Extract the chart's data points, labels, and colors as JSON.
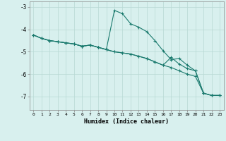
{
  "xlabel": "Humidex (Indice chaleur)",
  "background_color": "#d8f0ee",
  "grid_color": "#b8d8d4",
  "line_color": "#1a7a6e",
  "xlim": [
    -0.5,
    23.5
  ],
  "ylim": [
    -7.6,
    -2.75
  ],
  "xticks": [
    0,
    1,
    2,
    3,
    4,
    5,
    6,
    7,
    8,
    9,
    10,
    11,
    12,
    13,
    14,
    15,
    16,
    17,
    18,
    19,
    20,
    21,
    22,
    23
  ],
  "yticks": [
    -7,
    -6,
    -5,
    -4,
    -3
  ],
  "line1_x": [
    0,
    1,
    2,
    3,
    4,
    5,
    6,
    7,
    8,
    9,
    10,
    11,
    12,
    13,
    14,
    15,
    16,
    17,
    18,
    19,
    20,
    21,
    22,
    23
  ],
  "line1_y": [
    -4.25,
    -4.4,
    -4.5,
    -4.55,
    -4.6,
    -4.65,
    -4.75,
    -4.7,
    -4.8,
    -4.9,
    -3.15,
    -3.3,
    -3.75,
    -3.9,
    -4.1,
    -4.5,
    -4.95,
    -5.35,
    -5.3,
    -5.6,
    -5.85,
    -6.85,
    -6.95,
    -6.95
  ],
  "line2_x": [
    0,
    1,
    2,
    3,
    4,
    5,
    6,
    7,
    8,
    9,
    10,
    11,
    12,
    13,
    14,
    15,
    16,
    17,
    18,
    19,
    20,
    21,
    22,
    23
  ],
  "line2_y": [
    -4.25,
    -4.4,
    -4.5,
    -4.55,
    -4.6,
    -4.65,
    -4.75,
    -4.7,
    -4.8,
    -4.9,
    -5.0,
    -5.05,
    -5.1,
    -5.2,
    -5.3,
    -5.45,
    -5.6,
    -5.25,
    -5.55,
    -5.75,
    -5.85,
    -6.85,
    -6.95,
    -6.95
  ],
  "line3_x": [
    0,
    1,
    2,
    3,
    4,
    5,
    6,
    7,
    8,
    9,
    10,
    11,
    12,
    13,
    14,
    15,
    16,
    17,
    18,
    19,
    20,
    21,
    22,
    23
  ],
  "line3_y": [
    -4.25,
    -4.4,
    -4.5,
    -4.55,
    -4.6,
    -4.65,
    -4.75,
    -4.7,
    -4.8,
    -4.9,
    -5.0,
    -5.05,
    -5.1,
    -5.2,
    -5.3,
    -5.45,
    -5.6,
    -5.7,
    -5.85,
    -6.0,
    -6.1,
    -6.85,
    -6.95,
    -6.95
  ]
}
